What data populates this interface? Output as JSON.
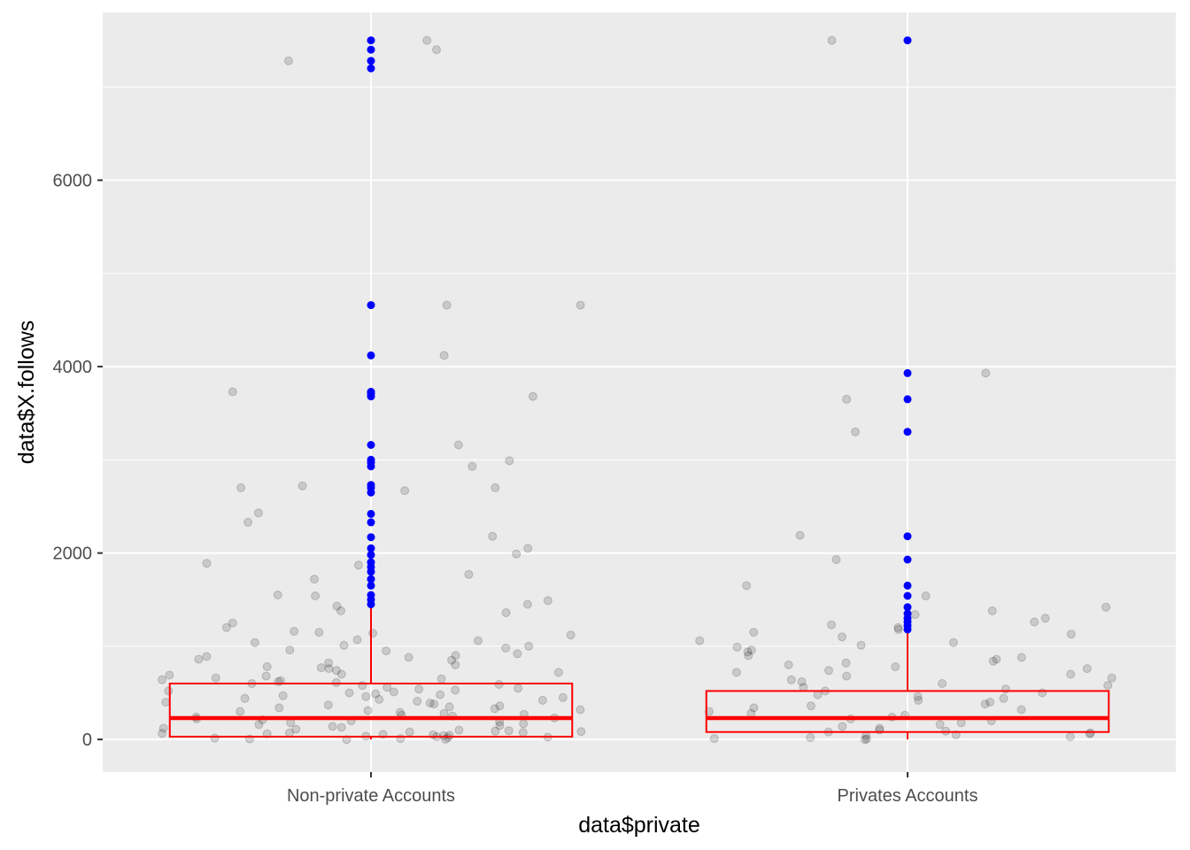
{
  "chart_data": {
    "type": "boxplot",
    "title": "",
    "xlabel": "data$private",
    "ylabel": "data$X.follows",
    "categories": [
      "Non-private Accounts",
      "Privates Accounts"
    ],
    "ylim": [
      -350,
      7800
    ],
    "yticks": [
      0,
      2000,
      4000,
      6000
    ],
    "ytick_labels": [
      "0",
      "2000",
      "4000",
      "6000"
    ],
    "grid": true,
    "colors": {
      "panel_bg": "#ebebeb",
      "grid": "#ffffff",
      "box": "#ff0000",
      "outlier": "#0000ff",
      "jitter": "#000000"
    },
    "boxes": [
      {
        "category": "Non-private Accounts",
        "whisker_low": 0,
        "q1": 30,
        "median": 230,
        "q3": 600,
        "whisker_high": 1420,
        "outliers": [
          1450,
          1500,
          1550,
          1650,
          1720,
          1800,
          1850,
          1900,
          1980,
          2050,
          2170,
          2330,
          2420,
          2650,
          2700,
          2730,
          2930,
          2970,
          3000,
          3160,
          3680,
          3710,
          3730,
          4120,
          4660,
          7200,
          7280,
          7400,
          7500
        ]
      },
      {
        "category": "Privates Accounts",
        "whisker_low": 0,
        "q1": 80,
        "median": 230,
        "q3": 520,
        "whisker_high": 1150,
        "outliers": [
          1180,
          1220,
          1260,
          1300,
          1350,
          1420,
          1540,
          1650,
          1930,
          2180,
          3300,
          3650,
          3930,
          7500
        ]
      }
    ],
    "jitter_points": [
      {
        "category": "Non-private Accounts",
        "values": [
          7400,
          7280,
          7500,
          4660,
          4660,
          4120,
          3730,
          3680,
          3160,
          2990,
          2930,
          2720,
          2700,
          2700,
          2670,
          2430,
          2330,
          2180,
          2050,
          1990,
          1890,
          1870,
          1770,
          1720,
          1550,
          1540,
          1490,
          1450,
          1430,
          1380,
          1360,
          1250,
          1200,
          1160,
          1150,
          1140,
          1120,
          1070,
          1060,
          1040,
          1010,
          1000,
          980,
          960,
          950,
          920,
          900,
          890,
          880,
          860,
          850,
          820,
          800,
          780,
          770,
          760,
          740,
          720,
          700,
          690,
          680,
          660,
          650,
          640,
          630,
          620,
          610,
          600,
          590,
          580,
          560,
          550,
          540,
          530,
          520,
          510,
          500,
          490,
          480,
          470,
          460,
          450,
          440,
          430,
          420,
          410,
          400,
          390,
          380,
          370,
          360,
          350,
          340,
          330,
          320,
          310,
          300,
          290,
          280,
          270,
          260,
          250,
          240,
          230,
          220,
          210,
          200,
          190,
          180,
          170,
          160,
          150,
          140,
          130,
          120,
          110,
          100,
          95,
          90,
          85,
          80,
          75,
          70,
          65,
          60,
          55,
          50,
          45,
          40,
          35,
          30,
          25,
          20,
          15,
          10,
          5,
          2,
          0
        ]
      },
      {
        "category": "Privates Accounts",
        "values": [
          7500,
          3930,
          3650,
          3300,
          2190,
          1930,
          1650,
          1540,
          1420,
          1380,
          1340,
          1300,
          1260,
          1230,
          1200,
          1180,
          1150,
          1130,
          1100,
          1060,
          1040,
          1010,
          990,
          960,
          940,
          900,
          880,
          860,
          840,
          820,
          800,
          780,
          760,
          740,
          720,
          700,
          680,
          660,
          640,
          620,
          600,
          580,
          560,
          540,
          520,
          500,
          480,
          460,
          440,
          420,
          400,
          380,
          360,
          340,
          320,
          300,
          280,
          260,
          240,
          220,
          200,
          180,
          160,
          140,
          120,
          100,
          90,
          80,
          70,
          60,
          50,
          40,
          30,
          20,
          10,
          5,
          0
        ]
      }
    ]
  }
}
